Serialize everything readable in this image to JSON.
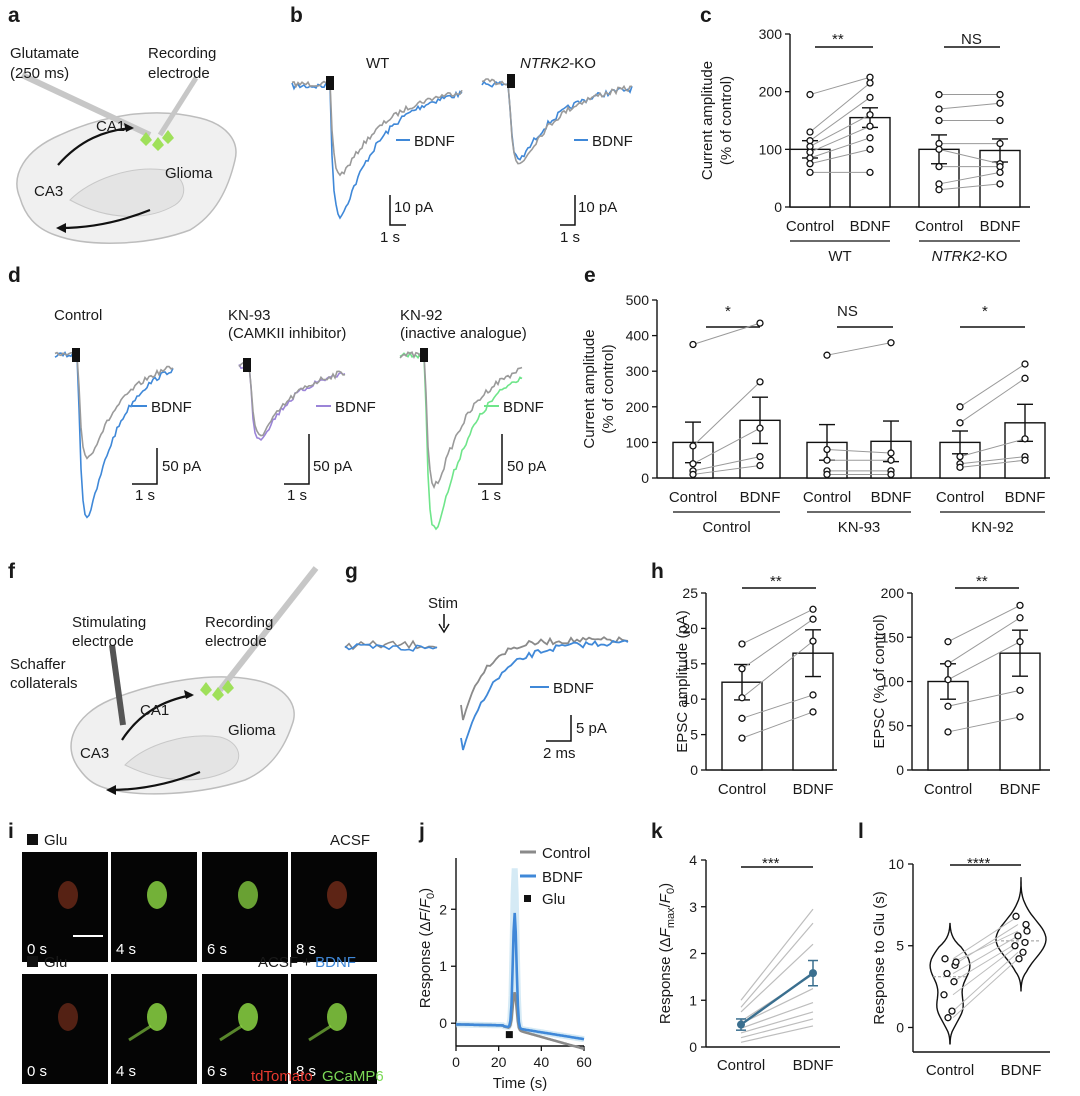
{
  "colors": {
    "blue": "#3f88d8",
    "grey": "#9a9a9a",
    "purple": "#9b84d8",
    "green": "#6fe58a",
    "red": "#e8392f",
    "lightgreen": "#7cd957",
    "tdtomato": "#e8392f",
    "gcamp": "#7cd957"
  },
  "panels": {
    "a": {
      "label": "a",
      "glutamate": "Glutamate",
      "glutamate_dur": "(250 ms)",
      "recording1": "Recording",
      "recording2": "electrode",
      "ca1": "CA1",
      "ca3": "CA3",
      "glioma": "Glioma"
    },
    "b": {
      "label": "b",
      "wt": "WT",
      "ko_gene": "NTRK2",
      "ko_suffix": "-KO",
      "bdnf": "BDNF",
      "scale_y": "10 pA",
      "scale_x": "1 s"
    },
    "c": {
      "label": "c",
      "sig_wt": "**",
      "sig_ko": "NS"
    },
    "d": {
      "label": "d",
      "control": "Control",
      "kn93": "KN-93",
      "kn93_sub": "(CAMKII inhibitor)",
      "kn92": "KN-92",
      "kn92_sub": "(inactive analogue)",
      "bdnf": "BDNF",
      "scale_y": "50 pA",
      "scale_x": "1 s"
    },
    "e": {
      "label": "e",
      "sig": [
        "*",
        "NS",
        "*"
      ]
    },
    "f": {
      "label": "f",
      "stim1": "Stimulating",
      "stim2": "electrode",
      "rec1": "Recording",
      "rec2": "electrode",
      "schaffer1": "Schaffer",
      "schaffer2": "collaterals",
      "ca1": "CA1",
      "ca3": "CA3",
      "glioma": "Glioma"
    },
    "g": {
      "label": "g",
      "stim": "Stim",
      "bdnf": "BDNF",
      "scale_y": "5 pA",
      "scale_x": "2 ms"
    },
    "h": {
      "label": "h",
      "sig_left": "**",
      "sig_right": "**"
    },
    "i": {
      "label": "i",
      "glu": "Glu",
      "acsf": "ACSF",
      "acsf_bdnf_prefix": "ACSF + ",
      "acsf_bdnf_suffix": "BDNF",
      "times": [
        "0 s",
        "4 s",
        "6 s",
        "8 s"
      ],
      "tdtomato": "tdTomato",
      "gcamp": "GCaMP6"
    },
    "j": {
      "label": "j",
      "legend": [
        "Control",
        "BDNF",
        "Glu"
      ]
    },
    "k": {
      "label": "k",
      "sig": "***"
    },
    "l": {
      "label": "l",
      "sig": "****"
    }
  },
  "chart_data": [
    {
      "id": "c",
      "type": "bar",
      "ylabel": "Current amplitude (% of control)",
      "ylim": [
        0,
        300
      ],
      "yticks": [
        0,
        100,
        200,
        300
      ],
      "categories": [
        "Control",
        "BDNF",
        "Control",
        "BDNF"
      ],
      "groups": [
        "WT",
        "NTRK2-KO"
      ],
      "values": [
        100,
        155,
        100,
        98
      ],
      "errors": [
        15,
        17,
        25,
        20
      ]
    },
    {
      "id": "e",
      "type": "bar",
      "ylabel": "Current amplitude (% of control)",
      "ylim": [
        0,
        500
      ],
      "yticks": [
        0,
        100,
        200,
        300,
        400,
        500
      ],
      "categories": [
        "Control",
        "BDNF",
        "Control",
        "BDNF",
        "Control",
        "BDNF"
      ],
      "groups": [
        "Control",
        "KN-93",
        "KN-92"
      ],
      "values": [
        100,
        162,
        100,
        103,
        100,
        155
      ],
      "errors": [
        57,
        65,
        50,
        57,
        32,
        52
      ]
    },
    {
      "id": "h-left",
      "type": "bar",
      "ylabel": "EPSC amplitude (pA)",
      "ylim": [
        0,
        25
      ],
      "yticks": [
        0,
        5,
        10,
        15,
        20,
        25
      ],
      "categories": [
        "Control",
        "BDNF"
      ],
      "values": [
        12.4,
        16.5
      ],
      "errors": [
        2.5,
        3.3
      ]
    },
    {
      "id": "h-right",
      "type": "bar",
      "ylabel": "EPSC (% of control)",
      "ylim": [
        0,
        200
      ],
      "yticks": [
        0,
        50,
        100,
        150,
        200
      ],
      "categories": [
        "Control",
        "BDNF"
      ],
      "values": [
        100,
        132
      ],
      "errors": [
        20,
        26
      ]
    },
    {
      "id": "j",
      "type": "line",
      "ylabel": "Response (ΔF/F0)",
      "xlabel": "Time (s)",
      "xlim": [
        0,
        60
      ],
      "ylim": [
        -0.4,
        2.9
      ],
      "xticks": [
        0,
        20,
        40,
        60
      ],
      "yticks": [
        0,
        1,
        2
      ],
      "series": [
        {
          "name": "Control",
          "color": "#8a8a8a"
        },
        {
          "name": "BDNF",
          "color": "#3f88d8"
        }
      ],
      "glu_time": 25
    },
    {
      "id": "k",
      "type": "line",
      "ylabel": "Response (ΔFmax/F0)",
      "ylim": [
        0,
        4
      ],
      "yticks": [
        0,
        1,
        2,
        3,
        4
      ],
      "categories": [
        "Control",
        "BDNF"
      ],
      "means": [
        0.48,
        1.58
      ],
      "errors": [
        0.12,
        0.27
      ]
    },
    {
      "id": "l",
      "type": "violin",
      "ylabel": "Response to Glu (s)",
      "ylim": [
        -1.5,
        10
      ],
      "yticks": [
        0,
        5,
        10
      ],
      "categories": [
        "Control",
        "BDNF"
      ],
      "control": [
        4.2,
        3.8,
        3.3,
        2.8,
        2.0,
        1.0,
        0.6,
        4.0
      ],
      "bdnf": [
        6.8,
        6.3,
        5.6,
        5.2,
        5.0,
        4.6,
        4.2,
        5.9
      ]
    }
  ]
}
